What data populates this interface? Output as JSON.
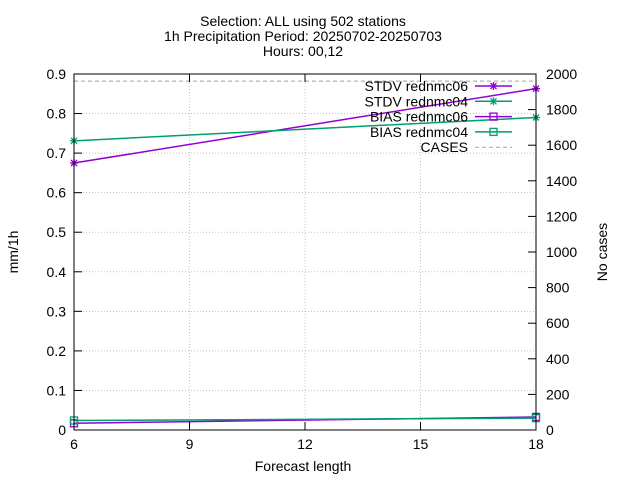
{
  "chart_data": {
    "type": "line",
    "title": [
      "Selection: ALL using   502 stations",
      "1h Precipitation   Period: 20250702-20250703",
      "Hours: 00,12"
    ],
    "xlabel": "Forecast length",
    "ylabel": "mm/1h",
    "y2label": "No cases",
    "x_ticks": [
      6,
      9,
      12,
      15,
      18
    ],
    "xlim": [
      6,
      18
    ],
    "y_ticks": [
      "0",
      "0.1",
      "0.2",
      "0.3",
      "0.4",
      "0.5",
      "0.6",
      "0.7",
      "0.8",
      "0.9"
    ],
    "ylim": [
      0,
      0.9
    ],
    "y2_ticks": [
      "0",
      "200",
      "400",
      "600",
      "800",
      "1000",
      "1200",
      "1400",
      "1600",
      "1800",
      "2000"
    ],
    "y2lim": [
      0,
      2000
    ],
    "grid": true,
    "legend_position": "top-right",
    "series": [
      {
        "name": "STDV rednmc06",
        "axis": "y",
        "color": "#9400d3",
        "marker": "star",
        "x": [
          6,
          18
        ],
        "y": [
          0.675,
          0.863
        ]
      },
      {
        "name": "STDV rednmc04",
        "axis": "y",
        "color": "#009e73",
        "marker": "star",
        "x": [
          6,
          18
        ],
        "y": [
          0.731,
          0.79
        ]
      },
      {
        "name": "BIAS rednmc06",
        "axis": "y",
        "color": "#9400d3",
        "marker": "square",
        "x": [
          6,
          18
        ],
        "y": [
          0.017,
          0.033
        ]
      },
      {
        "name": "BIAS rednmc04",
        "axis": "y",
        "color": "#009e73",
        "marker": "square",
        "x": [
          6,
          18
        ],
        "y": [
          0.024,
          0.03
        ]
      },
      {
        "name": "CASES",
        "axis": "y2",
        "color": "#a0a0a0",
        "marker": "none",
        "dashed": true,
        "x": [
          6,
          18
        ],
        "y": [
          1960,
          1960
        ]
      }
    ]
  }
}
